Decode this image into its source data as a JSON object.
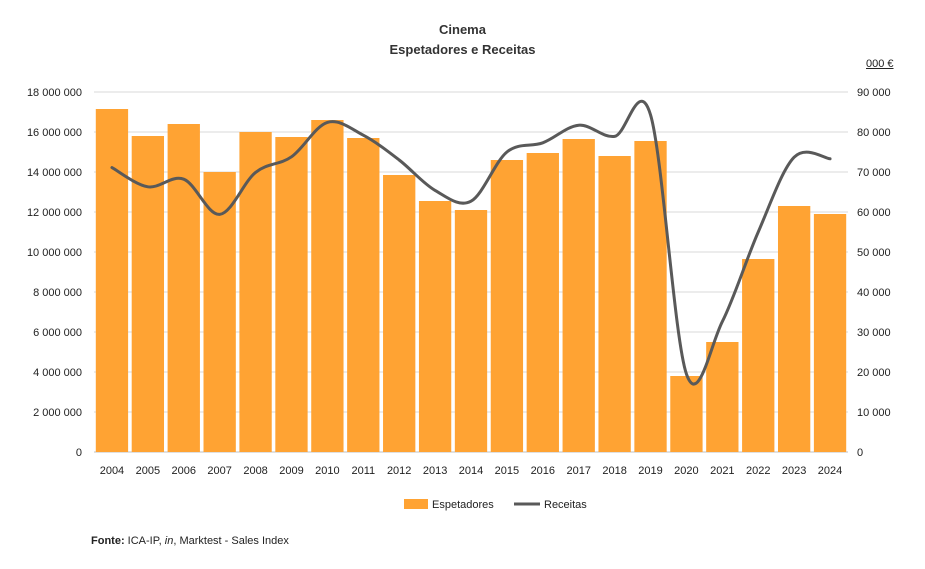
{
  "chart_data": {
    "type": "bar+line",
    "title": "Cinema",
    "subtitle": "Espetadores e Receitas",
    "right_axis_unit": "000 €",
    "categories": [
      "2004",
      "2005",
      "2006",
      "2007",
      "2008",
      "2009",
      "2010",
      "2011",
      "2012",
      "2013",
      "2014",
      "2015",
      "2016",
      "2017",
      "2018",
      "2019",
      "2020",
      "2021",
      "2022",
      "2023",
      "2024"
    ],
    "series": [
      {
        "name": "Espetadores",
        "type": "bar",
        "axis": "left",
        "color": "#FFA333",
        "values": [
          17150000,
          15800000,
          16400000,
          14000000,
          16000000,
          15750000,
          16600000,
          15700000,
          13850000,
          12550000,
          12100000,
          14600000,
          14950000,
          15650000,
          14800000,
          15550000,
          3800000,
          5500000,
          9650000,
          12300000,
          11900000
        ]
      },
      {
        "name": "Receitas",
        "type": "line",
        "axis": "right",
        "color": "#595959",
        "values": [
          71100,
          66300,
          68200,
          59400,
          69900,
          73800,
          82400,
          79200,
          73000,
          65400,
          62700,
          75000,
          77300,
          81700,
          78900,
          84300,
          19500,
          32600,
          55000,
          73700,
          73300
        ]
      }
    ],
    "left_axis": {
      "min": 0,
      "max": 18000000,
      "step": 2000000,
      "tick_labels": [
        "0",
        "2 000 000",
        "4 000 000",
        "6 000 000",
        "8 000 000",
        "10 000 000",
        "12 000 000",
        "14 000 000",
        "16 000 000",
        "18 000 000"
      ]
    },
    "right_axis": {
      "min": 0,
      "max": 90000,
      "step": 10000,
      "tick_labels": [
        "0",
        "10 000",
        "20 000",
        "30 000",
        "40 000",
        "50 000",
        "60 000",
        "70 000",
        "80 000",
        "90 000"
      ]
    },
    "grid": true,
    "legend_position": "bottom"
  },
  "source": {
    "label": "Fonte:",
    "text_before": "ICA-IP, ",
    "italic": "in",
    "text_after": ", Marktest - Sales Index"
  }
}
